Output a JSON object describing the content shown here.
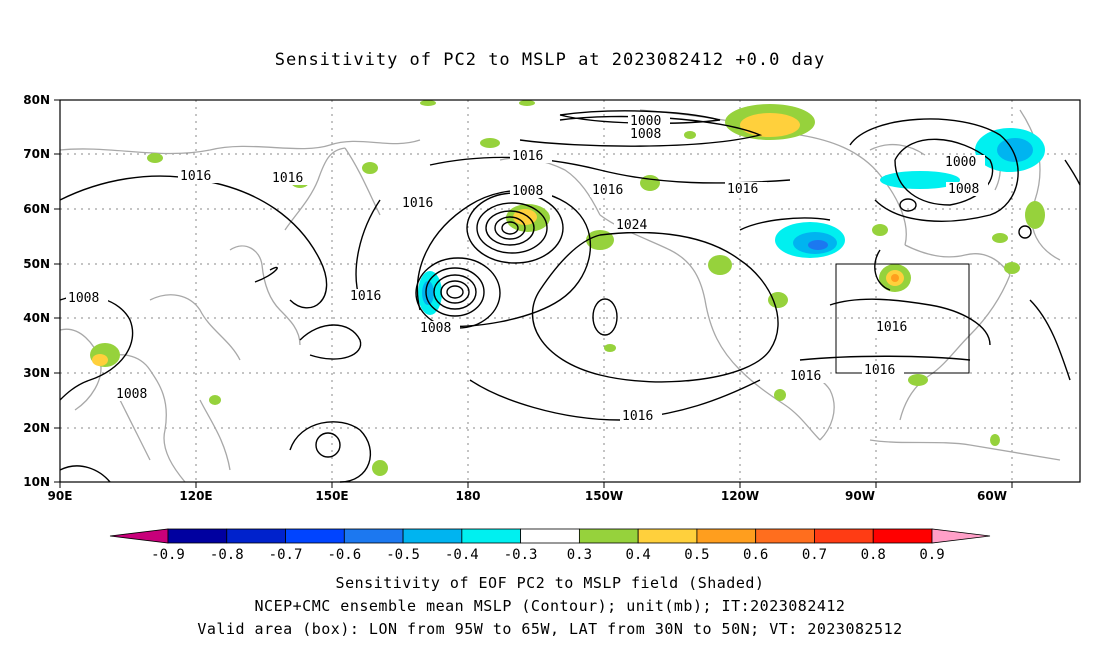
{
  "title": "Sensitivity of PC2 to MSLP at 2023082412 +0.0 day",
  "axes": {
    "lat_labels": [
      "80N",
      "70N",
      "60N",
      "50N",
      "40N",
      "30N",
      "20N",
      "10N"
    ],
    "lon_labels": [
      "90E",
      "120E",
      "150E",
      "180",
      "150W",
      "120W",
      "90W",
      "60W"
    ]
  },
  "contour_labels": [
    "1000",
    "1008",
    "1016",
    "1024"
  ],
  "colorbar": {
    "labels": [
      "-0.9",
      "-0.8",
      "-0.7",
      "-0.6",
      "-0.5",
      "-0.4",
      "-0.3",
      "0.3",
      "0.4",
      "0.5",
      "0.6",
      "0.7",
      "0.8",
      "0.9"
    ],
    "colors": [
      "#c8007a",
      "#0000a0",
      "#0022cc",
      "#0044ff",
      "#1c78f0",
      "#00b4f0",
      "#00f0f0",
      "#ffffff",
      "#96d23c",
      "#ffd03c",
      "#ff9e1e",
      "#ff6e1e",
      "#ff3c14",
      "#ff0000",
      "#ffa0c8"
    ]
  },
  "footer": {
    "line1": "Sensitivity of EOF PC2 to MSLP field (Shaded)",
    "line2": "NCEP+CMC ensemble mean MSLP (Contour); unit(mb); IT:2023082412",
    "line3": "Valid area (box): LON from 95W to 65W, LAT from 30N to 50N; VT: 2023082512"
  }
}
